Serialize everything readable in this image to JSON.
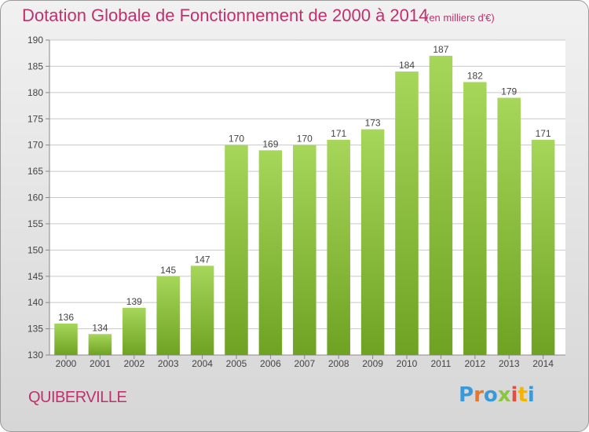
{
  "title": "Dotation Globale de Fonctionnement de 2000 à 2014",
  "subtitle": "(en milliers d'€)",
  "commune": "QUIBERVILLE",
  "logo": {
    "text": "Proxiti",
    "colors": [
      "#3a9ad9",
      "#e8762b",
      "#3a9ad9",
      "#8cc63f",
      "#e84c3d",
      "#f4b400",
      "#3a9ad9"
    ]
  },
  "colors": {
    "bar_light": "#a6d65a",
    "bar_dark": "#6fa222",
    "title": "#c0306e",
    "grid": "#c8c8c8"
  },
  "chart_data": {
    "type": "bar",
    "title": "Dotation Globale de Fonctionnement de 2000 à 2014",
    "xlabel": "",
    "ylabel": "",
    "categories": [
      "2000",
      "2001",
      "2002",
      "2003",
      "2004",
      "2005",
      "2006",
      "2007",
      "2008",
      "2009",
      "2010",
      "2011",
      "2012",
      "2013",
      "2014"
    ],
    "values": [
      136,
      134,
      139,
      145,
      147,
      170,
      169,
      170,
      171,
      173,
      184,
      187,
      182,
      179,
      171
    ],
    "ylim": [
      130,
      190
    ],
    "yticks": [
      130,
      135,
      140,
      145,
      150,
      155,
      160,
      165,
      170,
      175,
      180,
      185,
      190
    ]
  }
}
